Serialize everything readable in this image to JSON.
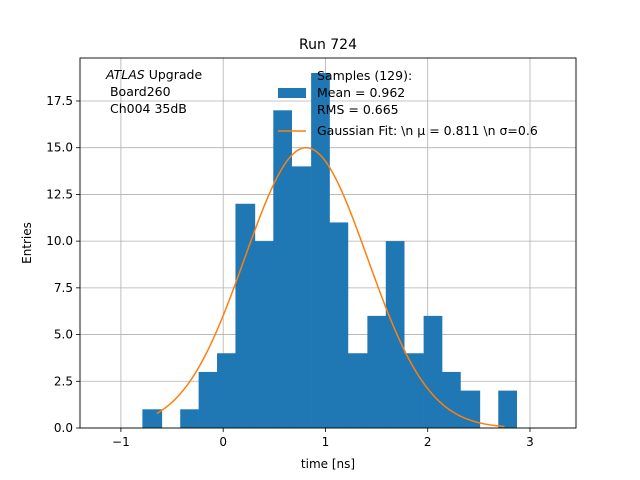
{
  "chart_data": {
    "type": "histogram",
    "title": "Run 724",
    "xlabel": "time [ns]",
    "ylabel": "Entries",
    "xlim": [
      -1.4,
      3.45
    ],
    "ylim": [
      0,
      19.8
    ],
    "grid": true,
    "xticks": [
      -1,
      0,
      1,
      2,
      3
    ],
    "xtick_labels": [
      "−1",
      "0",
      "1",
      "2",
      "3"
    ],
    "yticks": [
      0,
      2.5,
      5,
      7.5,
      10,
      12.5,
      15,
      17.5
    ],
    "ytick_labels": [
      "0.0",
      "2.5",
      "5.0",
      "7.5",
      "10.0",
      "12.5",
      "15.0",
      "17.5"
    ],
    "annotation": {
      "lines": [
        {
          "italic": "ATLAS",
          "text": " Upgrade"
        },
        {
          "italic": "",
          "text": " Board260"
        },
        {
          "italic": "",
          "text": " Ch004 35dB"
        }
      ]
    },
    "histogram": {
      "name": "Samples (129):",
      "legend_lines": [
        "Samples (129):",
        "Mean = 0.962",
        "RMS = 0.665"
      ],
      "color": "#1f77b4",
      "bin_edges": [
        -0.79,
        -0.6,
        -0.42,
        -0.24,
        -0.06,
        0.12,
        0.31,
        0.49,
        0.67,
        0.86,
        1.04,
        1.22,
        1.41,
        1.59,
        1.77,
        1.96,
        2.14,
        2.32,
        2.51,
        2.69,
        2.87
      ],
      "counts": [
        1,
        0,
        1,
        3,
        4,
        12,
        10,
        17,
        14,
        19,
        11,
        4,
        6,
        10,
        4,
        6,
        3,
        2,
        0,
        2
      ]
    },
    "fit": {
      "name": "Gaussian Fit",
      "legend_label": "Gaussian Fit: \\n μ = 0.811 \\n σ=0.6",
      "color": "#ff7f0e",
      "mu": 0.811,
      "sigma": 0.6,
      "amplitude": 15,
      "x_range": [
        -0.65,
        2.75
      ]
    }
  }
}
